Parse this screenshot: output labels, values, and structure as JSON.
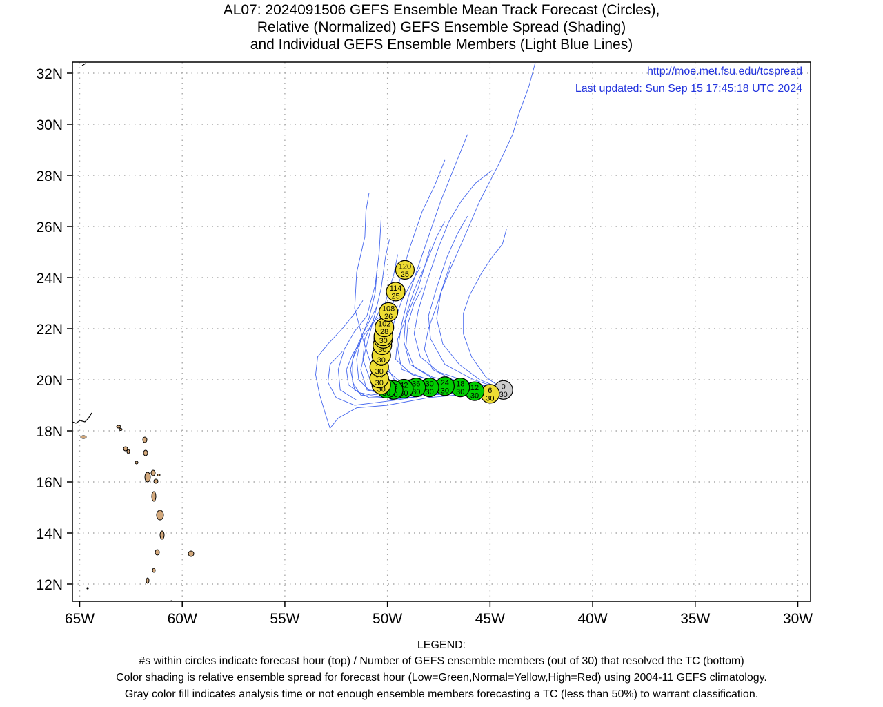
{
  "title": {
    "line1": "AL07: 2024091506 GEFS Ensemble Mean Track Forecast (Circles),",
    "line2": "Relative (Normalized) GEFS Ensemble Spread (Shading)",
    "line3": "and Individual GEFS Ensemble Members (Light Blue Lines)"
  },
  "header_info": {
    "url": "http://moe.met.fsu.edu/tcspread",
    "updated": "Last updated: Sun Sep 15 17:45:18 UTC 2024"
  },
  "map": {
    "lon_range": [
      -65,
      -30
    ],
    "lat_range": [
      11.3,
      32.4
    ],
    "x_ticks": [
      {
        "lon": -65,
        "label": "65W"
      },
      {
        "lon": -60,
        "label": "60W"
      },
      {
        "lon": -55,
        "label": "55W"
      },
      {
        "lon": -50,
        "label": "50W"
      },
      {
        "lon": -45,
        "label": "45W"
      },
      {
        "lon": -40,
        "label": "40W"
      },
      {
        "lon": -35,
        "label": "35W"
      },
      {
        "lon": -30,
        "label": "30W"
      }
    ],
    "y_ticks": [
      {
        "lat": 12,
        "label": "12N"
      },
      {
        "lat": 14,
        "label": "14N"
      },
      {
        "lat": 16,
        "label": "16N"
      },
      {
        "lat": 18,
        "label": "18N"
      },
      {
        "lat": 20,
        "label": "20N"
      },
      {
        "lat": 22,
        "label": "22N"
      },
      {
        "lat": 24,
        "label": "24N"
      },
      {
        "lat": 26,
        "label": "26N"
      },
      {
        "lat": 28,
        "label": "28N"
      },
      {
        "lat": 30,
        "label": "30N"
      },
      {
        "lat": 32,
        "label": "32N"
      }
    ],
    "grid": "dotted",
    "land_color": "#d2a87c",
    "member_line_color": "#4466ee"
  },
  "chart_data": {
    "type": "scatter",
    "spread_colors": {
      "low": "#00cc00",
      "normal": "#eedd33",
      "analysis": "#cccccc"
    },
    "forecast_points": [
      {
        "hour": "0",
        "members": "30",
        "lon": -44.35,
        "lat": 19.6,
        "spread": "analysis"
      },
      {
        "hour": "6",
        "members": "30",
        "lon": -45.0,
        "lat": 19.45,
        "spread": "normal"
      },
      {
        "hour": "12",
        "members": "30",
        "lon": -45.75,
        "lat": 19.55,
        "spread": "low"
      },
      {
        "hour": "18",
        "members": "30",
        "lon": -46.45,
        "lat": 19.7,
        "spread": "low"
      },
      {
        "hour": "24",
        "members": "30",
        "lon": -47.2,
        "lat": 19.75,
        "spread": "low"
      },
      {
        "hour": "30",
        "members": "30",
        "lon": -47.95,
        "lat": 19.7,
        "spread": "low"
      },
      {
        "hour": "36",
        "members": "30",
        "lon": -48.6,
        "lat": 19.7,
        "spread": "low"
      },
      {
        "hour": "42",
        "members": "30",
        "lon": -49.2,
        "lat": 19.65,
        "spread": "low"
      },
      {
        "hour": "48",
        "members": "30",
        "lon": -49.7,
        "lat": 19.6,
        "spread": "low"
      },
      {
        "hour": "54",
        "members": "30",
        "lon": -50.05,
        "lat": 19.65,
        "spread": "low"
      },
      {
        "hour": "60",
        "members": "30",
        "lon": -50.3,
        "lat": 19.8,
        "spread": "normal"
      },
      {
        "hour": "66",
        "members": "30",
        "lon": -50.4,
        "lat": 20.05,
        "spread": "normal"
      },
      {
        "hour": "72",
        "members": "30",
        "lon": -50.4,
        "lat": 20.5,
        "spread": "normal"
      },
      {
        "hour": "78",
        "members": "30",
        "lon": -50.3,
        "lat": 20.95,
        "spread": "normal"
      },
      {
        "hour": "84",
        "members": "30",
        "lon": -50.25,
        "lat": 21.35,
        "spread": "normal"
      },
      {
        "hour": "90",
        "members": "30",
        "lon": -50.2,
        "lat": 21.6,
        "spread": "normal"
      },
      {
        "hour": "96",
        "members": "30",
        "lon": -50.2,
        "lat": 21.7,
        "spread": "normal"
      },
      {
        "hour": "102",
        "members": "28",
        "lon": -50.15,
        "lat": 22.05,
        "spread": "normal"
      },
      {
        "hour": "108",
        "members": "26",
        "lon": -49.95,
        "lat": 22.65,
        "spread": "normal"
      },
      {
        "hour": "114",
        "members": "25",
        "lon": -49.6,
        "lat": 23.45,
        "spread": "normal"
      },
      {
        "hour": "120",
        "members": "25",
        "lon": -49.15,
        "lat": 24.3,
        "spread": "normal"
      }
    ],
    "member_tracks": [
      [
        [
          -44.3,
          19.6
        ],
        [
          -46,
          19.6
        ],
        [
          -48,
          19.65
        ],
        [
          -50,
          19.6
        ],
        [
          -50.6,
          19.8
        ],
        [
          -50.8,
          20.6
        ],
        [
          -51.2,
          21.6
        ],
        [
          -51.6,
          22.8
        ],
        [
          -51.5,
          24.2
        ],
        [
          -51.1,
          25.6
        ],
        [
          -51.05,
          26.6
        ],
        [
          -50.9,
          27.3
        ]
      ],
      [
        [
          -44.3,
          19.6
        ],
        [
          -46,
          19.5
        ],
        [
          -48,
          19.5
        ],
        [
          -50,
          19.4
        ],
        [
          -51,
          19.6
        ],
        [
          -51.3,
          20.4
        ],
        [
          -51.0,
          21.4
        ],
        [
          -50.6,
          22.6
        ],
        [
          -50.3,
          23.6
        ],
        [
          -50.1,
          24.8
        ],
        [
          -49.9,
          25.5
        ]
      ],
      [
        [
          -44.3,
          19.6
        ],
        [
          -46,
          19.5
        ],
        [
          -48,
          19.4
        ],
        [
          -50,
          19.2
        ],
        [
          -51.5,
          19.2
        ],
        [
          -52.3,
          19.6
        ],
        [
          -52.4,
          20.4
        ],
        [
          -52.1,
          21.2
        ],
        [
          -51.6,
          21.9
        ],
        [
          -51.0,
          22.5
        ],
        [
          -50.6,
          23.7
        ],
        [
          -50.4,
          25.0
        ],
        [
          -50.3,
          26.4
        ]
      ],
      [
        [
          -44.3,
          19.6
        ],
        [
          -46,
          19.45
        ],
        [
          -48,
          19.3
        ],
        [
          -50,
          19.0
        ],
        [
          -51.5,
          18.9
        ],
        [
          -52.4,
          18.5
        ],
        [
          -52.8,
          18.1
        ],
        [
          -53.0,
          18.6
        ],
        [
          -53.3,
          19.4
        ],
        [
          -53.5,
          20.2
        ],
        [
          -53.4,
          20.9
        ],
        [
          -52.9,
          21.4
        ],
        [
          -52.2,
          22.0
        ],
        [
          -51.6,
          22.6
        ],
        [
          -51.2,
          23.1
        ]
      ],
      [
        [
          -44.3,
          19.6
        ],
        [
          -46,
          19.6
        ],
        [
          -48,
          19.8
        ],
        [
          -49.5,
          20.0
        ],
        [
          -50.2,
          20.5
        ],
        [
          -50.1,
          21.5
        ],
        [
          -49.9,
          22.4
        ],
        [
          -49.6,
          23.4
        ],
        [
          -49.2,
          24.4
        ],
        [
          -48.9,
          25.2
        ],
        [
          -48.6,
          25.9
        ],
        [
          -48.3,
          26.6
        ],
        [
          -47.7,
          27.6
        ],
        [
          -47.2,
          28.6
        ]
      ],
      [
        [
          -44.3,
          19.6
        ],
        [
          -46,
          19.7
        ],
        [
          -48,
          20.0
        ],
        [
          -49.3,
          20.4
        ],
        [
          -49.5,
          21.2
        ],
        [
          -49.3,
          22.2
        ],
        [
          -49.0,
          23.2
        ],
        [
          -48.6,
          24.2
        ],
        [
          -48.0,
          25.6
        ],
        [
          -47.4,
          27.0
        ],
        [
          -46.7,
          28.4
        ],
        [
          -46.1,
          29.6
        ]
      ],
      [
        [
          -44.3,
          19.6
        ],
        [
          -46,
          19.9
        ],
        [
          -47.5,
          20.3
        ],
        [
          -48.4,
          20.9
        ],
        [
          -48.7,
          21.8
        ],
        [
          -48.5,
          22.7
        ],
        [
          -48.1,
          23.8
        ],
        [
          -47.5,
          25.2
        ],
        [
          -47.0,
          26.2
        ],
        [
          -46.4,
          27.0
        ],
        [
          -45.7,
          27.7
        ],
        [
          -44.9,
          28.2
        ]
      ],
      [
        [
          -44.3,
          19.6
        ],
        [
          -45.5,
          20.0
        ],
        [
          -46.5,
          20.6
        ],
        [
          -47.3,
          21.4
        ],
        [
          -47.6,
          22.4
        ],
        [
          -47.4,
          23.4
        ],
        [
          -46.9,
          24.4
        ],
        [
          -46.3,
          25.5
        ],
        [
          -45.5,
          27.0
        ],
        [
          -44.6,
          28.4
        ],
        [
          -43.9,
          29.6
        ],
        [
          -43.6,
          30.4
        ],
        [
          -43.1,
          31.5
        ],
        [
          -42.8,
          32.4
        ]
      ],
      [
        [
          -44.3,
          19.6
        ],
        [
          -45.2,
          20.1
        ],
        [
          -45.9,
          20.9
        ],
        [
          -46.3,
          21.8
        ],
        [
          -46.3,
          22.6
        ],
        [
          -46.0,
          23.3
        ],
        [
          -45.4,
          24.2
        ],
        [
          -44.9,
          24.8
        ],
        [
          -44.4,
          25.3
        ],
        [
          -44.2,
          25.9
        ]
      ],
      [
        [
          -44.3,
          19.6
        ],
        [
          -45.8,
          20.0
        ],
        [
          -47.2,
          20.6
        ],
        [
          -47.9,
          21.6
        ],
        [
          -48.0,
          22.5
        ],
        [
          -47.6,
          23.6
        ],
        [
          -47.1,
          24.8
        ],
        [
          -46.6,
          25.7
        ],
        [
          -46.1,
          26.4
        ]
      ],
      [
        [
          -44.3,
          19.6
        ],
        [
          -45.8,
          19.7
        ],
        [
          -47.5,
          19.9
        ],
        [
          -48.8,
          20.2
        ],
        [
          -49.6,
          20.8
        ],
        [
          -49.5,
          21.6
        ],
        [
          -49.0,
          22.6
        ],
        [
          -48.5,
          23.6
        ],
        [
          -48.2,
          24.4
        ],
        [
          -47.9,
          25.2
        ]
      ],
      [
        [
          -44.3,
          19.6
        ],
        [
          -46,
          19.55
        ],
        [
          -48,
          19.45
        ],
        [
          -49.8,
          19.3
        ],
        [
          -50.9,
          19.3
        ],
        [
          -51.6,
          19.6
        ],
        [
          -51.8,
          20.4
        ],
        [
          -51.6,
          21.1
        ],
        [
          -51.2,
          21.8
        ],
        [
          -50.8,
          22.4
        ],
        [
          -50.5,
          22.9
        ]
      ],
      [
        [
          -44.3,
          19.6
        ],
        [
          -46,
          19.5
        ],
        [
          -48,
          19.4
        ],
        [
          -49.6,
          19.2
        ],
        [
          -50.6,
          19.1
        ],
        [
          -51.6,
          19.0
        ],
        [
          -52.5,
          19.3
        ],
        [
          -52.9,
          19.9
        ],
        [
          -52.8,
          20.6
        ],
        [
          -52.2,
          21.1
        ]
      ],
      [
        [
          -44.3,
          19.6
        ],
        [
          -46,
          19.55
        ],
        [
          -48,
          19.6
        ],
        [
          -49.8,
          19.7
        ],
        [
          -50.5,
          20.2
        ],
        [
          -50.6,
          21.0
        ],
        [
          -50.5,
          21.8
        ],
        [
          -50.3,
          22.5
        ],
        [
          -50.0,
          23.3
        ],
        [
          -49.7,
          24.1
        ],
        [
          -49.5,
          24.9
        ]
      ],
      [
        [
          -44.3,
          19.6
        ],
        [
          -46,
          19.6
        ],
        [
          -48,
          19.7
        ],
        [
          -49.6,
          19.9
        ],
        [
          -50.0,
          20.5
        ],
        [
          -50.0,
          21.3
        ],
        [
          -49.7,
          22.2
        ],
        [
          -49.3,
          23.1
        ],
        [
          -48.9,
          23.7
        ],
        [
          -48.4,
          24.4
        ]
      ],
      [
        [
          -44.3,
          19.6
        ],
        [
          -46,
          19.5
        ],
        [
          -48,
          19.5
        ],
        [
          -49.8,
          19.5
        ],
        [
          -50.8,
          19.9
        ],
        [
          -51.2,
          20.8
        ],
        [
          -51.1,
          21.6
        ],
        [
          -50.7,
          22.3
        ],
        [
          -50.0,
          22.6
        ],
        [
          -49.5,
          22.9
        ]
      ],
      [
        [
          -44.3,
          19.6
        ],
        [
          -46,
          19.7
        ],
        [
          -47.7,
          20.0
        ],
        [
          -48.7,
          20.5
        ],
        [
          -49.1,
          21.3
        ],
        [
          -49.0,
          22.2
        ],
        [
          -48.7,
          23.0
        ],
        [
          -48.3,
          23.6
        ]
      ],
      [
        [
          -44.3,
          19.6
        ],
        [
          -46,
          19.6
        ],
        [
          -48,
          19.6
        ],
        [
          -49.9,
          19.5
        ],
        [
          -50.8,
          19.4
        ],
        [
          -51.4,
          19.5
        ],
        [
          -51.9,
          19.8
        ],
        [
          -52.0,
          20.4
        ],
        [
          -51.7,
          21.0
        ],
        [
          -51.3,
          21.5
        ]
      ],
      [
        [
          -44.3,
          19.6
        ],
        [
          -46,
          19.5
        ],
        [
          -48,
          19.45
        ],
        [
          -50,
          19.3
        ],
        [
          -51.3,
          19.4
        ],
        [
          -51.7,
          19.9
        ],
        [
          -51.7,
          20.8
        ],
        [
          -51.2,
          21.7
        ],
        [
          -50.7,
          22.2
        ],
        [
          -50.2,
          23.0
        ]
      ],
      [
        [
          -44.3,
          19.6
        ],
        [
          -45.5,
          19.8
        ],
        [
          -46.8,
          20.0
        ],
        [
          -47.8,
          20.4
        ],
        [
          -48.2,
          21.2
        ],
        [
          -48.0,
          22.0
        ],
        [
          -47.6,
          22.9
        ],
        [
          -47.2,
          23.9
        ],
        [
          -46.9,
          24.6
        ]
      ],
      [
        [
          -44.3,
          19.6
        ],
        [
          -46,
          19.8
        ],
        [
          -47.8,
          20.1
        ],
        [
          -48.9,
          20.6
        ],
        [
          -49.2,
          21.5
        ],
        [
          -49.1,
          22.5
        ],
        [
          -48.7,
          23.5
        ],
        [
          -48.1,
          24.6
        ],
        [
          -47.6,
          25.6
        ],
        [
          -47.2,
          26.2
        ]
      ],
      [
        [
          -44.3,
          19.6
        ],
        [
          -46,
          19.6
        ],
        [
          -48,
          19.55
        ],
        [
          -49.9,
          19.5
        ],
        [
          -50.9,
          19.6
        ],
        [
          -51.4,
          20.0
        ],
        [
          -51.5,
          20.8
        ],
        [
          -51.3,
          21.6
        ],
        [
          -50.9,
          22.4
        ],
        [
          -50.6,
          23.4
        ],
        [
          -50.5,
          24.3
        ]
      ]
    ]
  },
  "legend": {
    "heading": "LEGEND:",
    "line1": "#s within circles indicate forecast hour (top) / Number of GEFS ensemble members (out of 30) that resolved the TC (bottom)",
    "line2": "Color shading is relative ensemble spread for forecast hour (Low=Green,Normal=Yellow,High=Red) using 2004-11 GEFS climatology.",
    "line3": "Gray color fill indicates analysis time or not enough ensemble members forecasting a TC (less than 50%) to warrant classification."
  }
}
